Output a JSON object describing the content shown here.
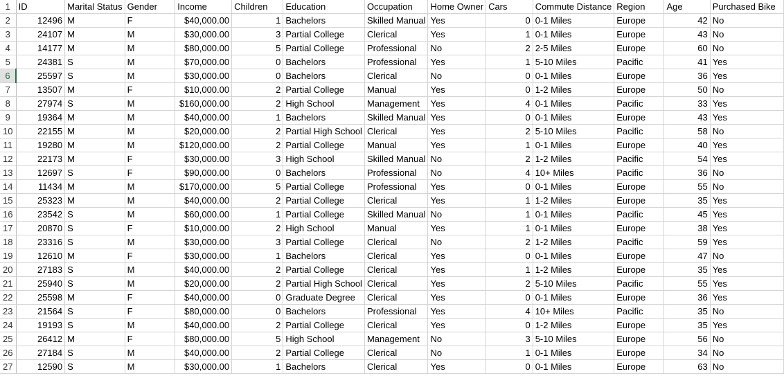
{
  "headers": [
    "ID",
    "Marital Status",
    "Gender",
    "Income",
    "Children",
    "Education",
    "Occupation",
    "Home Owner",
    "Cars",
    "Commute Distance",
    "Region",
    "Age",
    "Purchased Bike"
  ],
  "column_align": [
    "num",
    "txt",
    "txt",
    "num",
    "num",
    "txt",
    "txt",
    "txt",
    "num",
    "txt",
    "txt",
    "num",
    "txt"
  ],
  "rows": [
    [
      "12496",
      "M",
      "F",
      "$40,000.00",
      "1",
      "Bachelors",
      "Skilled Manual",
      "Yes",
      "0",
      "0-1 Miles",
      "Europe",
      "42",
      "No"
    ],
    [
      "24107",
      "M",
      "M",
      "$30,000.00",
      "3",
      "Partial College",
      "Clerical",
      "Yes",
      "1",
      "0-1 Miles",
      "Europe",
      "43",
      "No"
    ],
    [
      "14177",
      "M",
      "M",
      "$80,000.00",
      "5",
      "Partial College",
      "Professional",
      "No",
      "2",
      "2-5 Miles",
      "Europe",
      "60",
      "No"
    ],
    [
      "24381",
      "S",
      "M",
      "$70,000.00",
      "0",
      "Bachelors",
      "Professional",
      "Yes",
      "1",
      "5-10 Miles",
      "Pacific",
      "41",
      "Yes"
    ],
    [
      "25597",
      "S",
      "M",
      "$30,000.00",
      "0",
      "Bachelors",
      "Clerical",
      "No",
      "0",
      "0-1 Miles",
      "Europe",
      "36",
      "Yes"
    ],
    [
      "13507",
      "M",
      "F",
      "$10,000.00",
      "2",
      "Partial College",
      "Manual",
      "Yes",
      "0",
      "1-2 Miles",
      "Europe",
      "50",
      "No"
    ],
    [
      "27974",
      "S",
      "M",
      "$160,000.00",
      "2",
      "High School",
      "Management",
      "Yes",
      "4",
      "0-1 Miles",
      "Pacific",
      "33",
      "Yes"
    ],
    [
      "19364",
      "M",
      "M",
      "$40,000.00",
      "1",
      "Bachelors",
      "Skilled Manual",
      "Yes",
      "0",
      "0-1 Miles",
      "Europe",
      "43",
      "Yes"
    ],
    [
      "22155",
      "M",
      "M",
      "$20,000.00",
      "2",
      "Partial High School",
      "Clerical",
      "Yes",
      "2",
      "5-10 Miles",
      "Pacific",
      "58",
      "No"
    ],
    [
      "19280",
      "M",
      "M",
      "$120,000.00",
      "2",
      "Partial College",
      "Manual",
      "Yes",
      "1",
      "0-1 Miles",
      "Europe",
      "40",
      "Yes"
    ],
    [
      "22173",
      "M",
      "F",
      "$30,000.00",
      "3",
      "High School",
      "Skilled Manual",
      "No",
      "2",
      "1-2 Miles",
      "Pacific",
      "54",
      "Yes"
    ],
    [
      "12697",
      "S",
      "F",
      "$90,000.00",
      "0",
      "Bachelors",
      "Professional",
      "No",
      "4",
      "10+ Miles",
      "Pacific",
      "36",
      "No"
    ],
    [
      "11434",
      "M",
      "M",
      "$170,000.00",
      "5",
      "Partial College",
      "Professional",
      "Yes",
      "0",
      "0-1 Miles",
      "Europe",
      "55",
      "No"
    ],
    [
      "25323",
      "M",
      "M",
      "$40,000.00",
      "2",
      "Partial College",
      "Clerical",
      "Yes",
      "1",
      "1-2 Miles",
      "Europe",
      "35",
      "Yes"
    ],
    [
      "23542",
      "S",
      "M",
      "$60,000.00",
      "1",
      "Partial College",
      "Skilled Manual",
      "No",
      "1",
      "0-1 Miles",
      "Pacific",
      "45",
      "Yes"
    ],
    [
      "20870",
      "S",
      "F",
      "$10,000.00",
      "2",
      "High School",
      "Manual",
      "Yes",
      "1",
      "0-1 Miles",
      "Europe",
      "38",
      "Yes"
    ],
    [
      "23316",
      "S",
      "M",
      "$30,000.00",
      "3",
      "Partial College",
      "Clerical",
      "No",
      "2",
      "1-2 Miles",
      "Pacific",
      "59",
      "Yes"
    ],
    [
      "12610",
      "M",
      "F",
      "$30,000.00",
      "1",
      "Bachelors",
      "Clerical",
      "Yes",
      "0",
      "0-1 Miles",
      "Europe",
      "47",
      "No"
    ],
    [
      "27183",
      "S",
      "M",
      "$40,000.00",
      "2",
      "Partial College",
      "Clerical",
      "Yes",
      "1",
      "1-2 Miles",
      "Europe",
      "35",
      "Yes"
    ],
    [
      "25940",
      "S",
      "M",
      "$20,000.00",
      "2",
      "Partial High School",
      "Clerical",
      "Yes",
      "2",
      "5-10 Miles",
      "Pacific",
      "55",
      "Yes"
    ],
    [
      "25598",
      "M",
      "F",
      "$40,000.00",
      "0",
      "Graduate Degree",
      "Clerical",
      "Yes",
      "0",
      "0-1 Miles",
      "Europe",
      "36",
      "Yes"
    ],
    [
      "21564",
      "S",
      "F",
      "$80,000.00",
      "0",
      "Bachelors",
      "Professional",
      "Yes",
      "4",
      "10+ Miles",
      "Pacific",
      "35",
      "No"
    ],
    [
      "19193",
      "S",
      "M",
      "$40,000.00",
      "2",
      "Partial College",
      "Clerical",
      "Yes",
      "0",
      "1-2 Miles",
      "Europe",
      "35",
      "Yes"
    ],
    [
      "26412",
      "M",
      "F",
      "$80,000.00",
      "5",
      "High School",
      "Management",
      "No",
      "3",
      "5-10 Miles",
      "Europe",
      "56",
      "No"
    ],
    [
      "27184",
      "S",
      "M",
      "$40,000.00",
      "2",
      "Partial College",
      "Clerical",
      "No",
      "1",
      "0-1 Miles",
      "Europe",
      "34",
      "No"
    ],
    [
      "12590",
      "S",
      "M",
      "$30,000.00",
      "1",
      "Bachelors",
      "Clerical",
      "Yes",
      "0",
      "0-1 Miles",
      "Europe",
      "63",
      "No"
    ]
  ],
  "selected_row_number": 6
}
